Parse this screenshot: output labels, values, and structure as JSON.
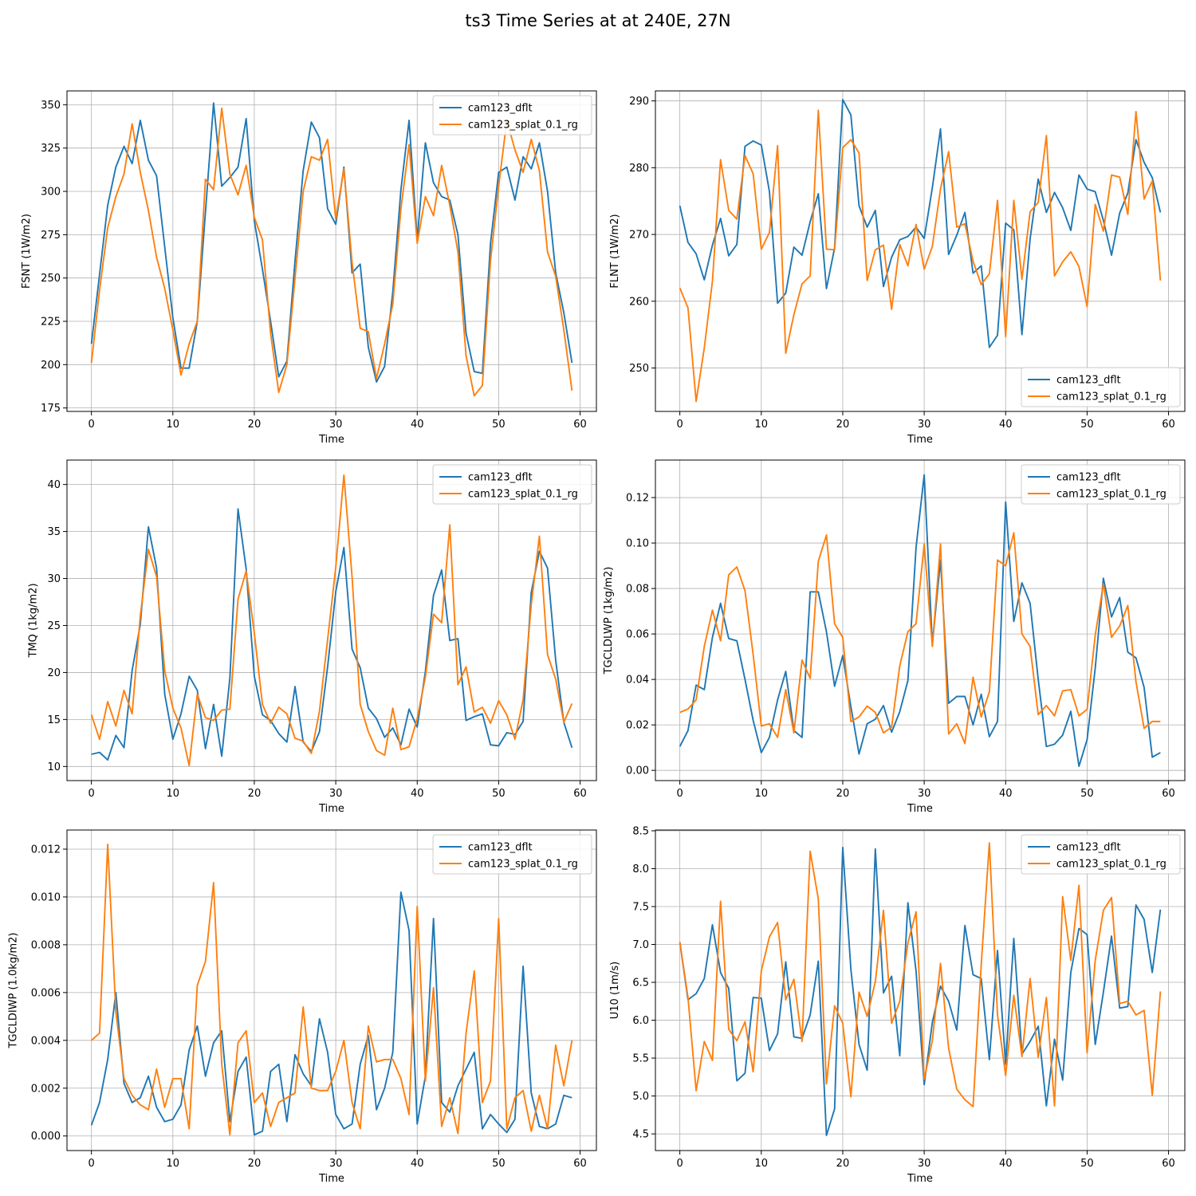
{
  "title": "ts3 Time Series at at 240E, 27N",
  "colors": {
    "dflt": "#1f77b4",
    "splat": "#ff7f0e",
    "grid": "#b0b0b0"
  },
  "chart_data": [
    {
      "type": "line",
      "title": "",
      "xlabel": "Time",
      "ylabel": "FSNT (1W/m2)",
      "xlim": [
        -3,
        62
      ],
      "ylim": [
        173,
        358
      ],
      "xticks": [
        0,
        10,
        20,
        30,
        40,
        50,
        60
      ],
      "yticks": [
        175,
        200,
        225,
        250,
        275,
        300,
        325,
        350
      ],
      "legend": "top-right",
      "series": [
        {
          "name": "cam123_dflt",
          "values": [
            212,
            252,
            292,
            314,
            326,
            316,
            341,
            318,
            309,
            268,
            227,
            198,
            198,
            225,
            288,
            351,
            303,
            308,
            314,
            342,
            283,
            255,
            225,
            193,
            202,
            260,
            312,
            340,
            331,
            290,
            281,
            314,
            253,
            258,
            210,
            190,
            199,
            242,
            301,
            341,
            272,
            328,
            305,
            297,
            295,
            275,
            218,
            196,
            195,
            270,
            311,
            314,
            295,
            320,
            313,
            328,
            300,
            253,
            230,
            201
          ]
        },
        {
          "name": "cam123_splat_0.1_rg",
          "values": [
            201,
            243,
            279,
            297,
            310,
            339,
            311,
            289,
            262,
            244,
            220,
            194,
            212,
            225,
            307,
            301,
            348,
            310,
            298,
            315,
            285,
            272,
            218,
            184,
            200,
            250,
            300,
            320,
            318,
            330,
            284,
            313,
            259,
            221,
            219,
            192,
            212,
            235,
            290,
            327,
            270,
            297,
            286,
            315,
            292,
            265,
            205,
            182,
            188,
            260,
            303,
            341,
            324,
            311,
            330,
            312,
            265,
            251,
            220,
            185
          ]
        }
      ]
    },
    {
      "type": "line",
      "title": "",
      "xlabel": "Time",
      "ylabel": "FLNT (1W/m2)",
      "xlim": [
        -3,
        62
      ],
      "ylim": [
        243.5,
        291.5
      ],
      "xticks": [
        0,
        10,
        20,
        30,
        40,
        50,
        60
      ],
      "yticks": [
        250,
        260,
        270,
        280,
        290
      ],
      "legend": "bottom-right",
      "series": [
        {
          "name": "cam123_dflt",
          "values": [
            274.3,
            268.8,
            267.1,
            263.2,
            268.4,
            272.4,
            266.8,
            268.5,
            283.2,
            284.0,
            283.4,
            276.4,
            259.7,
            261.2,
            268.1,
            266.9,
            271.9,
            276.1,
            261.9,
            268.0,
            290.2,
            287.9,
            274.3,
            271.1,
            273.6,
            262.2,
            266.6,
            269.2,
            269.7,
            271.1,
            269.4,
            277.0,
            285.8,
            267.0,
            269.9,
            273.3,
            264.2,
            265.3,
            253.1,
            254.9,
            271.7,
            270.7,
            255.0,
            269.3,
            278.3,
            273.3,
            276.3,
            274.0,
            270.6,
            278.9,
            276.8,
            276.4,
            272.1,
            266.9,
            273.2,
            276.2,
            284.2,
            280.8,
            278.5,
            273.3
          ]
        },
        {
          "name": "cam123_splat_0.1_rg",
          "values": [
            262.0,
            259.0,
            245.0,
            253.0,
            263.0,
            281.2,
            273.6,
            272.3,
            281.8,
            279.1,
            267.8,
            270.3,
            283.3,
            252.2,
            258.0,
            262.6,
            263.8,
            288.6,
            267.8,
            267.7,
            283.0,
            284.2,
            282.2,
            263.1,
            267.7,
            268.4,
            258.8,
            268.5,
            265.3,
            271.5,
            264.8,
            268.2,
            276.8,
            282.4,
            271.1,
            271.6,
            266.0,
            262.5,
            264.1,
            275.1,
            254.7,
            275.1,
            263.3,
            273.4,
            274.8,
            284.8,
            263.8,
            265.9,
            267.4,
            265.2,
            259.2,
            274.5,
            270.5,
            278.9,
            278.6,
            273.0,
            288.4,
            275.3,
            278.0,
            263.1
          ]
        }
      ]
    },
    {
      "type": "line",
      "title": "",
      "xlabel": "Time",
      "ylabel": "TMQ (1kg/m2)",
      "xlim": [
        -3,
        62
      ],
      "ylim": [
        8.5,
        42.6
      ],
      "xticks": [
        0,
        10,
        20,
        30,
        40,
        50,
        60
      ],
      "yticks": [
        10,
        15,
        20,
        25,
        30,
        35,
        40
      ],
      "legend": "top-right",
      "series": [
        {
          "name": "cam123_dflt",
          "values": [
            11.3,
            11.5,
            10.7,
            13.3,
            12.0,
            20.2,
            25.1,
            35.5,
            31.1,
            17.7,
            12.9,
            15.6,
            19.6,
            18.1,
            11.9,
            16.6,
            11.1,
            19.4,
            37.4,
            31.0,
            19.6,
            15.5,
            14.9,
            13.5,
            12.6,
            18.5,
            12.6,
            11.6,
            13.7,
            20.6,
            28.6,
            33.3,
            22.5,
            20.5,
            16.2,
            15.1,
            13.1,
            14.1,
            12.3,
            16.1,
            14.2,
            20.1,
            28.2,
            30.9,
            23.4,
            23.6,
            14.9,
            15.3,
            15.6,
            12.3,
            12.2,
            13.6,
            13.4,
            14.8,
            28.5,
            32.9,
            31.1,
            21.3,
            14.7,
            12.0
          ]
        },
        {
          "name": "cam123_splat_0.1_rg",
          "values": [
            15.5,
            12.9,
            16.9,
            14.3,
            18.1,
            15.6,
            26.0,
            33.1,
            30.2,
            20.2,
            16.2,
            14.1,
            10.1,
            17.7,
            15.2,
            14.9,
            16.0,
            16.1,
            27.8,
            30.8,
            24.2,
            16.6,
            14.6,
            16.3,
            15.6,
            13.0,
            12.7,
            11.4,
            15.9,
            23.5,
            31.2,
            41.0,
            30.2,
            16.6,
            13.7,
            11.7,
            11.2,
            16.2,
            11.8,
            12.1,
            15.1,
            19.5,
            26.2,
            25.3,
            35.7,
            18.7,
            20.6,
            15.8,
            16.3,
            14.6,
            17.0,
            15.5,
            12.9,
            17.1,
            27.2,
            34.5,
            21.9,
            19.3,
            14.7,
            16.7
          ]
        }
      ]
    },
    {
      "type": "line",
      "title": "",
      "xlabel": "Time",
      "ylabel": "TGCLDLWP (1kg/m2)",
      "xlim": [
        -3,
        62
      ],
      "ylim": [
        -0.0045,
        0.1365
      ],
      "xticks": [
        0,
        10,
        20,
        30,
        40,
        50,
        60
      ],
      "yticks": [
        0.0,
        0.02,
        0.04,
        0.06,
        0.08,
        0.1,
        0.12
      ],
      "ytick_labels": [
        "0.00",
        "0.02",
        "0.04",
        "0.06",
        "0.08",
        "0.10",
        "0.12"
      ],
      "legend": "top-right",
      "series": [
        {
          "name": "cam123_dflt",
          "values": [
            0.0105,
            0.0175,
            0.0375,
            0.0355,
            0.0585,
            0.0735,
            0.058,
            0.057,
            0.04,
            0.022,
            0.0078,
            0.0145,
            0.031,
            0.0435,
            0.0175,
            0.0145,
            0.0785,
            0.0785,
            0.061,
            0.037,
            0.0505,
            0.028,
            0.0072,
            0.0205,
            0.0225,
            0.0285,
            0.0168,
            0.0258,
            0.0395,
            0.098,
            0.13,
            0.0555,
            0.0925,
            0.0295,
            0.0325,
            0.0325,
            0.02,
            0.0335,
            0.0148,
            0.0215,
            0.118,
            0.0655,
            0.0825,
            0.0735,
            0.04,
            0.0105,
            0.0115,
            0.0155,
            0.026,
            0.0018,
            0.0135,
            0.045,
            0.0845,
            0.0675,
            0.076,
            0.052,
            0.0495,
            0.0365,
            0.0058,
            0.0078
          ]
        },
        {
          "name": "cam123_splat_0.1_rg",
          "values": [
            0.0255,
            0.027,
            0.031,
            0.0545,
            0.0705,
            0.057,
            0.086,
            0.0895,
            0.079,
            0.051,
            0.0195,
            0.0205,
            0.0145,
            0.0355,
            0.0165,
            0.0485,
            0.0405,
            0.092,
            0.1035,
            0.0645,
            0.0585,
            0.0215,
            0.0235,
            0.0283,
            0.0255,
            0.0165,
            0.019,
            0.046,
            0.061,
            0.0645,
            0.0995,
            0.0545,
            0.0995,
            0.016,
            0.0205,
            0.0118,
            0.041,
            0.0235,
            0.0345,
            0.0925,
            0.09,
            0.1045,
            0.06,
            0.0545,
            0.0245,
            0.0285,
            0.024,
            0.035,
            0.0355,
            0.024,
            0.0268,
            0.0595,
            0.082,
            0.0585,
            0.0635,
            0.0725,
            0.039,
            0.0185,
            0.0215,
            0.0215
          ]
        }
      ]
    },
    {
      "type": "line",
      "title": "",
      "xlabel": "Time",
      "ylabel": "TGCLDIWP (1.0kg/m2)",
      "xlim": [
        -3,
        62
      ],
      "ylim": [
        -0.00061,
        0.0128
      ],
      "xticks": [
        0,
        10,
        20,
        30,
        40,
        50,
        60
      ],
      "yticks": [
        0.0,
        0.002,
        0.004,
        0.006,
        0.008,
        0.01,
        0.012
      ],
      "ytick_labels": [
        "0.000",
        "0.002",
        "0.004",
        "0.006",
        "0.008",
        "0.010",
        "0.012"
      ],
      "legend": "top-right",
      "series": [
        {
          "name": "cam123_dflt",
          "values": [
            0.00045,
            0.0014,
            0.0032,
            0.006,
            0.0022,
            0.0014,
            0.0016,
            0.0025,
            0.0012,
            0.0006,
            0.0007,
            0.0013,
            0.0036,
            0.0046,
            0.0025,
            0.0039,
            0.0044,
            0.0006,
            0.0027,
            0.0033,
            5e-05,
            0.0002,
            0.0027,
            0.003,
            0.0006,
            0.0034,
            0.0026,
            0.0021,
            0.0049,
            0.0035,
            0.0009,
            0.0003,
            0.0005,
            0.003,
            0.0042,
            0.0011,
            0.002,
            0.0035,
            0.0102,
            0.0086,
            0.0005,
            0.0025,
            0.0091,
            0.0014,
            0.001,
            0.0021,
            0.0028,
            0.0035,
            0.0003,
            0.0009,
            0.0005,
            0.00015,
            0.0007,
            0.0071,
            0.0018,
            0.0004,
            0.0003,
            0.0005,
            0.0017,
            0.0016
          ]
        },
        {
          "name": "cam123_splat_0.1_rg",
          "values": [
            0.004,
            0.0043,
            0.0122,
            0.0052,
            0.0024,
            0.0017,
            0.0013,
            0.0011,
            0.0028,
            0.0012,
            0.0024,
            0.0024,
            0.0003,
            0.0063,
            0.0073,
            0.0106,
            0.003,
            5e-05,
            0.0039,
            0.0044,
            0.0014,
            0.0018,
            0.0004,
            0.0014,
            0.0016,
            0.0018,
            0.0054,
            0.002,
            0.0019,
            0.0019,
            0.0027,
            0.004,
            0.0014,
            0.0003,
            0.0046,
            0.0031,
            0.0032,
            0.0032,
            0.0024,
            0.0009,
            0.0096,
            0.0023,
            0.0062,
            0.0004,
            0.0016,
            0.0001,
            0.0043,
            0.0069,
            0.0014,
            0.0023,
            0.0091,
            0.0003,
            0.0016,
            0.0019,
            0.0002,
            0.0017,
            0.0003,
            0.0038,
            0.0021,
            0.004
          ]
        }
      ]
    },
    {
      "type": "line",
      "title": "",
      "xlabel": "Time",
      "ylabel": "U10 (1m/s)",
      "xlim": [
        -3,
        62
      ],
      "ylim": [
        4.28,
        8.51
      ],
      "xticks": [
        0,
        10,
        20,
        30,
        40,
        50,
        60
      ],
      "yticks": [
        4.5,
        5.0,
        5.5,
        6.0,
        6.5,
        7.0,
        7.5,
        8.0,
        8.5
      ],
      "ytick_labels": [
        "4.5",
        "5.0",
        "5.5",
        "6.0",
        "6.5",
        "7.0",
        "7.5",
        "8.0",
        "8.5"
      ],
      "legend": "top-right",
      "series": [
        {
          "name": "cam123_dflt",
          "values": [
            7.03,
            6.27,
            6.35,
            6.55,
            7.26,
            6.63,
            6.42,
            5.2,
            5.3,
            6.3,
            6.29,
            5.6,
            5.82,
            6.77,
            5.78,
            5.76,
            6.07,
            6.78,
            4.48,
            4.83,
            8.28,
            6.67,
            5.68,
            5.34,
            8.26,
            6.36,
            6.58,
            5.53,
            7.55,
            6.65,
            5.15,
            5.97,
            6.45,
            6.25,
            5.87,
            7.25,
            6.6,
            6.55,
            5.48,
            6.92,
            5.42,
            7.08,
            5.55,
            5.72,
            5.92,
            4.87,
            5.75,
            5.21,
            6.63,
            7.21,
            7.13,
            5.68,
            6.37,
            7.11,
            6.16,
            6.18,
            7.52,
            7.33,
            6.63,
            7.46
          ]
        },
        {
          "name": "cam123_splat_0.1_rg",
          "values": [
            7.03,
            6.3,
            5.07,
            5.72,
            5.47,
            7.57,
            5.88,
            5.73,
            5.98,
            5.32,
            6.65,
            7.1,
            7.29,
            6.27,
            6.54,
            5.72,
            8.23,
            7.6,
            5.16,
            6.19,
            5.96,
            4.99,
            6.37,
            6.05,
            6.51,
            7.45,
            5.96,
            6.25,
            7.02,
            7.43,
            5.22,
            5.73,
            6.75,
            5.63,
            5.09,
            4.95,
            4.86,
            6.73,
            8.34,
            6.07,
            5.27,
            6.33,
            5.52,
            6.55,
            5.51,
            6.3,
            4.87,
            7.63,
            6.79,
            7.78,
            5.57,
            6.79,
            7.45,
            7.62,
            6.22,
            6.25,
            6.07,
            6.13,
            5.01,
            6.38
          ]
        }
      ]
    }
  ]
}
